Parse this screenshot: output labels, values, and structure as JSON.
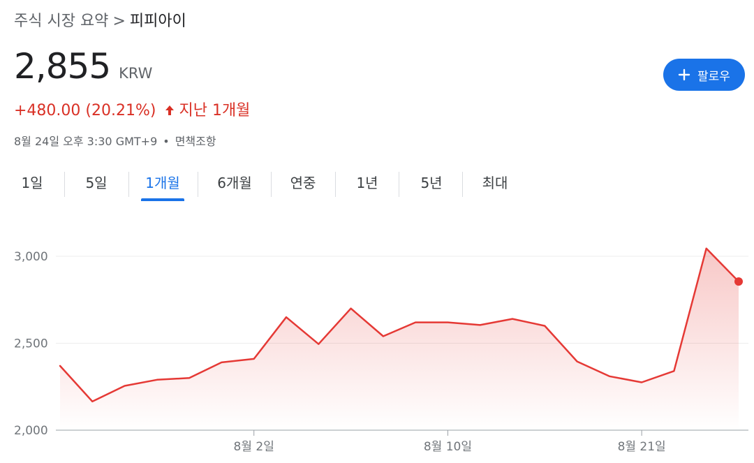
{
  "breadcrumb": {
    "parent": "주식 시장 요약",
    "separator": ">",
    "current": "피피아이"
  },
  "quote": {
    "price": "2,855",
    "currency": "KRW",
    "change": "+480.00 (20.21%)",
    "period": "지난 1개월",
    "timestamp": "8월 24일 오후 3:30 GMT+9",
    "disclaimer": "면책조항"
  },
  "follow_button": {
    "label": "팔로우",
    "icon": "plus-icon"
  },
  "tabs": [
    "1일",
    "5일",
    "1개월",
    "6개월",
    "연중",
    "1년",
    "5년",
    "최대"
  ],
  "active_tab_index": 2,
  "colors": {
    "accent": "#1a73e8",
    "down_line": "#e53935",
    "change_text": "#d93025",
    "text": "#202124",
    "muted": "#5f6368"
  },
  "chart_data": {
    "type": "area",
    "x_labels": [
      "8월 2일",
      "8월 10일",
      "8월 21일"
    ],
    "x_label_indices": [
      6,
      12,
      18
    ],
    "y_ticks": [
      2000,
      2500,
      3000
    ],
    "y_tick_labels": [
      "2,000",
      "2,500",
      "3,000"
    ],
    "ylim": [
      2000,
      3100
    ],
    "grid": true,
    "series": [
      {
        "values": [
          2370,
          2165,
          2255,
          2290,
          2300,
          2390,
          2410,
          2650,
          2495,
          2700,
          2540,
          2620,
          2620,
          2605,
          2640,
          2600,
          2395,
          2310,
          2275,
          2340,
          3045,
          2855
        ]
      }
    ]
  }
}
